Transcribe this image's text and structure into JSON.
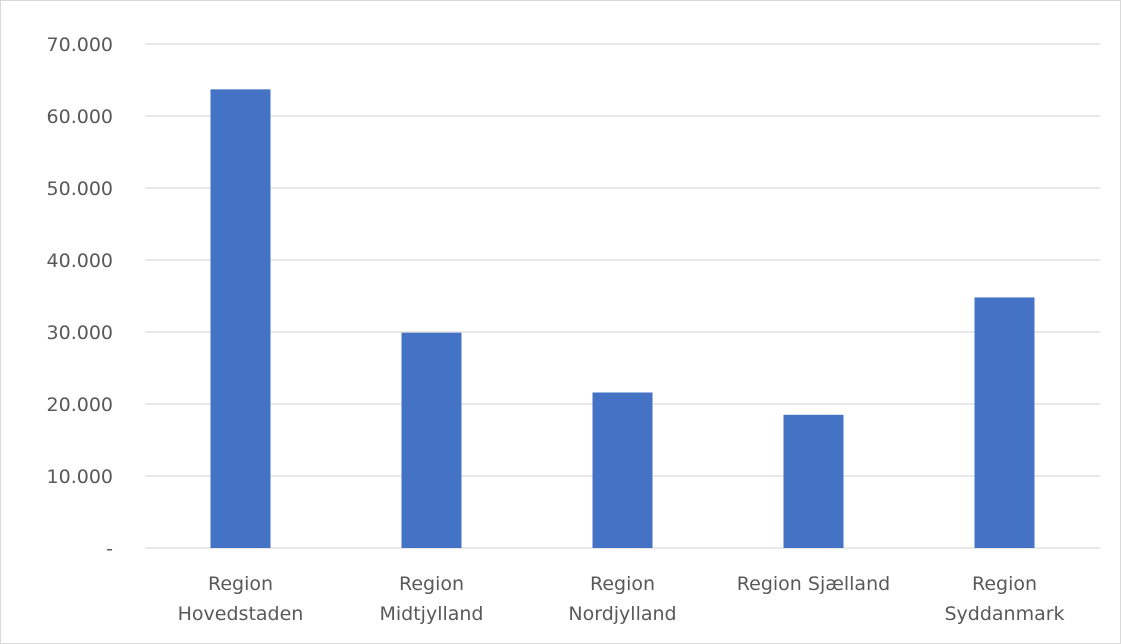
{
  "chart_data": {
    "type": "bar",
    "categories": [
      [
        "Region",
        "Hovedstaden"
      ],
      [
        "Region",
        "Midtjylland"
      ],
      [
        "Region",
        "Nordjylland"
      ],
      [
        "Region Sjælland"
      ],
      [
        "Region",
        "Syddanmark"
      ]
    ],
    "values": [
      63700,
      29900,
      21600,
      18500,
      34800
    ],
    "ylim": [
      0,
      70000
    ],
    "yticks": [
      {
        "value": 0,
        "label": "-"
      },
      {
        "value": 10000,
        "label": "10.000"
      },
      {
        "value": 20000,
        "label": "20.000"
      },
      {
        "value": 30000,
        "label": "30.000"
      },
      {
        "value": 40000,
        "label": "40.000"
      },
      {
        "value": 50000,
        "label": "50.000"
      },
      {
        "value": 60000,
        "label": "60.000"
      },
      {
        "value": 70000,
        "label": "70.000"
      }
    ],
    "grid": true,
    "legend": "none",
    "title": "",
    "xlabel": "",
    "ylabel": "",
    "colors": {
      "bar": "#4472C4",
      "grid": "#d9d9d9",
      "axis_text": "#595959"
    }
  }
}
